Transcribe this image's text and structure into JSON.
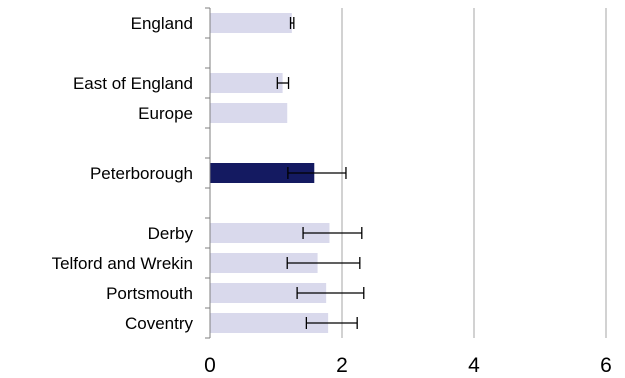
{
  "chart_data": {
    "type": "bar",
    "orientation": "horizontal",
    "categories": [
      "England",
      "",
      "East of England",
      "Europe",
      "",
      "Peterborough",
      "",
      "Derby",
      "Telford and Wrekin",
      "Portsmouth",
      "Coventry"
    ],
    "values": [
      1.24,
      null,
      1.1,
      1.17,
      null,
      1.58,
      null,
      1.81,
      1.63,
      1.76,
      1.79
    ],
    "error_low": [
      1.22,
      null,
      1.02,
      null,
      null,
      1.18,
      null,
      1.41,
      1.17,
      1.32,
      1.46
    ],
    "error_high": [
      1.27,
      null,
      1.19,
      null,
      null,
      2.06,
      null,
      2.3,
      2.27,
      2.33,
      2.23
    ],
    "highlight": "Peterborough",
    "xlim": [
      0,
      6
    ],
    "xticks": [
      "0",
      "2",
      "4",
      "6"
    ],
    "grid": "vertical",
    "colors": {
      "bar": "#d9d9ec",
      "highlight": "#141a61",
      "grid": "#a6a6a6",
      "axis": "#7f7f7f",
      "error": "#000000"
    }
  }
}
